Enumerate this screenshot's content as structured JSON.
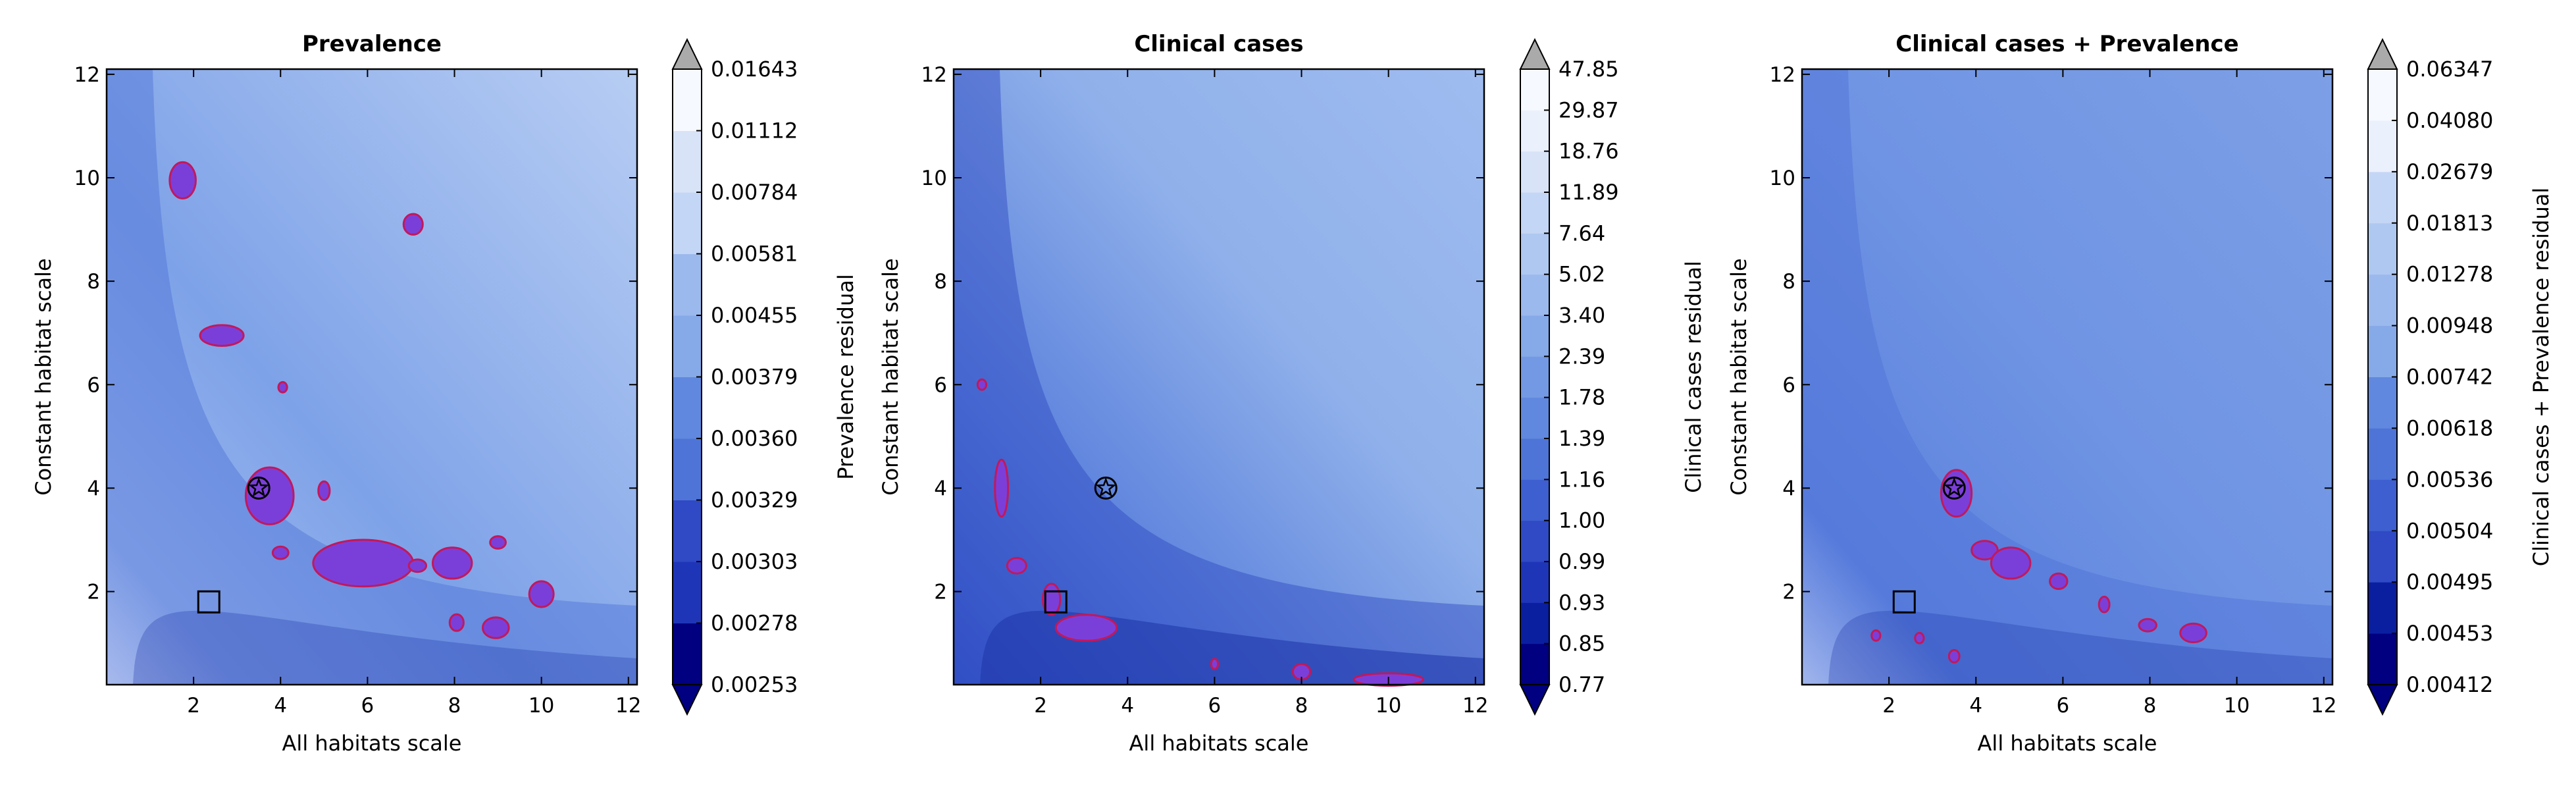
{
  "chart_data": [
    {
      "type": "heatmap",
      "title": "Prevalence",
      "xlabel": "All habitats scale",
      "ylabel": "Constant habitat scale",
      "xlim": [
        0,
        12.2
      ],
      "ylim": [
        0.2,
        12.1
      ],
      "xticks": [
        "2",
        "4",
        "6",
        "8",
        "10",
        "12"
      ],
      "yticks": [
        "2",
        "4",
        "6",
        "8",
        "10",
        "12"
      ],
      "colorbar_label": "Prevalence residual",
      "colorbar_ticks": [
        "0.00253",
        "0.00278",
        "0.00303",
        "0.00329",
        "0.00360",
        "0.00379",
        "0.00455",
        "0.00581",
        "0.00784",
        "0.01112",
        "0.01643"
      ],
      "circled_star_marker": [
        3.5,
        4.0
      ],
      "square_marker": [
        2.35,
        1.8
      ],
      "blobs": [
        {
          "x": 1.75,
          "y": 9.95,
          "rx": 0.3,
          "ry": 0.35
        },
        {
          "x": 7.05,
          "y": 9.1,
          "rx": 0.22,
          "ry": 0.2
        },
        {
          "x": 2.65,
          "y": 6.95,
          "rx": 0.5,
          "ry": 0.2
        },
        {
          "x": 4.05,
          "y": 5.95,
          "rx": 0.1,
          "ry": 0.1
        },
        {
          "x": 3.75,
          "y": 3.85,
          "rx": 0.55,
          "ry": 0.55
        },
        {
          "x": 5.0,
          "y": 3.95,
          "rx": 0.13,
          "ry": 0.18
        },
        {
          "x": 4.0,
          "y": 2.75,
          "rx": 0.18,
          "ry": 0.12
        },
        {
          "x": 5.9,
          "y": 2.55,
          "rx": 1.15,
          "ry": 0.45
        },
        {
          "x": 7.15,
          "y": 2.5,
          "rx": 0.2,
          "ry": 0.12
        },
        {
          "x": 7.95,
          "y": 2.55,
          "rx": 0.45,
          "ry": 0.3
        },
        {
          "x": 9.0,
          "y": 2.95,
          "rx": 0.18,
          "ry": 0.12
        },
        {
          "x": 10.0,
          "y": 1.95,
          "rx": 0.28,
          "ry": 0.25
        },
        {
          "x": 8.05,
          "y": 1.4,
          "rx": 0.16,
          "ry": 0.16
        },
        {
          "x": 8.95,
          "y": 1.3,
          "rx": 0.3,
          "ry": 0.2
        }
      ]
    },
    {
      "type": "heatmap",
      "title": "Clinical cases",
      "xlabel": "All habitats scale",
      "ylabel": "Constant habitat scale",
      "xlim": [
        0,
        12.2
      ],
      "ylim": [
        0.2,
        12.1
      ],
      "xticks": [
        "2",
        "4",
        "6",
        "8",
        "10",
        "12"
      ],
      "yticks": [
        "2",
        "4",
        "6",
        "8",
        "10",
        "12"
      ],
      "colorbar_label": "Clinical cases residual",
      "colorbar_ticks": [
        "0.77",
        "0.85",
        "0.93",
        "0.99",
        "1.00",
        "1.16",
        "1.39",
        "1.78",
        "2.39",
        "3.40",
        "5.02",
        "7.64",
        "11.89",
        "18.76",
        "29.87",
        "47.85"
      ],
      "circled_star_marker": [
        3.5,
        4.0
      ],
      "square_marker": [
        2.35,
        1.8
      ],
      "blobs": [
        {
          "x": 1.1,
          "y": 4.0,
          "rx": 0.15,
          "ry": 0.55
        },
        {
          "x": 0.65,
          "y": 6.0,
          "rx": 0.1,
          "ry": 0.1
        },
        {
          "x": 1.45,
          "y": 2.5,
          "rx": 0.22,
          "ry": 0.15
        },
        {
          "x": 2.25,
          "y": 1.85,
          "rx": 0.2,
          "ry": 0.3
        },
        {
          "x": 3.05,
          "y": 1.3,
          "rx": 0.7,
          "ry": 0.25
        },
        {
          "x": 8.0,
          "y": 0.45,
          "rx": 0.2,
          "ry": 0.15
        },
        {
          "x": 10.0,
          "y": 0.3,
          "rx": 0.8,
          "ry": 0.12
        },
        {
          "x": 6.0,
          "y": 0.6,
          "rx": 0.08,
          "ry": 0.1
        }
      ]
    },
    {
      "type": "heatmap",
      "title": "Clinical cases + Prevalence",
      "xlabel": "All habitats scale",
      "ylabel": "Constant habitat scale",
      "xlim": [
        0,
        12.2
      ],
      "ylim": [
        0.2,
        12.1
      ],
      "xticks": [
        "2",
        "4",
        "6",
        "8",
        "10",
        "12"
      ],
      "yticks": [
        "2",
        "4",
        "6",
        "8",
        "10",
        "12"
      ],
      "colorbar_label": "Clinical cases + Prevalence residual",
      "colorbar_ticks": [
        "0.00412",
        "0.00453",
        "0.00495",
        "0.00504",
        "0.00536",
        "0.00618",
        "0.00742",
        "0.00948",
        "0.01278",
        "0.01813",
        "0.02679",
        "0.04080",
        "0.06347"
      ],
      "circled_star_marker": [
        3.5,
        4.0
      ],
      "square_marker": [
        2.35,
        1.8
      ],
      "blobs": [
        {
          "x": 3.55,
          "y": 3.9,
          "rx": 0.35,
          "ry": 0.45
        },
        {
          "x": 4.2,
          "y": 2.8,
          "rx": 0.3,
          "ry": 0.18
        },
        {
          "x": 4.8,
          "y": 2.55,
          "rx": 0.45,
          "ry": 0.3
        },
        {
          "x": 5.9,
          "y": 2.2,
          "rx": 0.2,
          "ry": 0.15
        },
        {
          "x": 6.95,
          "y": 1.75,
          "rx": 0.12,
          "ry": 0.15
        },
        {
          "x": 7.95,
          "y": 1.35,
          "rx": 0.2,
          "ry": 0.12
        },
        {
          "x": 9.0,
          "y": 1.2,
          "rx": 0.3,
          "ry": 0.18
        },
        {
          "x": 3.5,
          "y": 0.75,
          "rx": 0.12,
          "ry": 0.12
        },
        {
          "x": 1.7,
          "y": 1.15,
          "rx": 0.1,
          "ry": 0.1
        },
        {
          "x": 2.7,
          "y": 1.1,
          "rx": 0.1,
          "ry": 0.1
        }
      ]
    }
  ]
}
